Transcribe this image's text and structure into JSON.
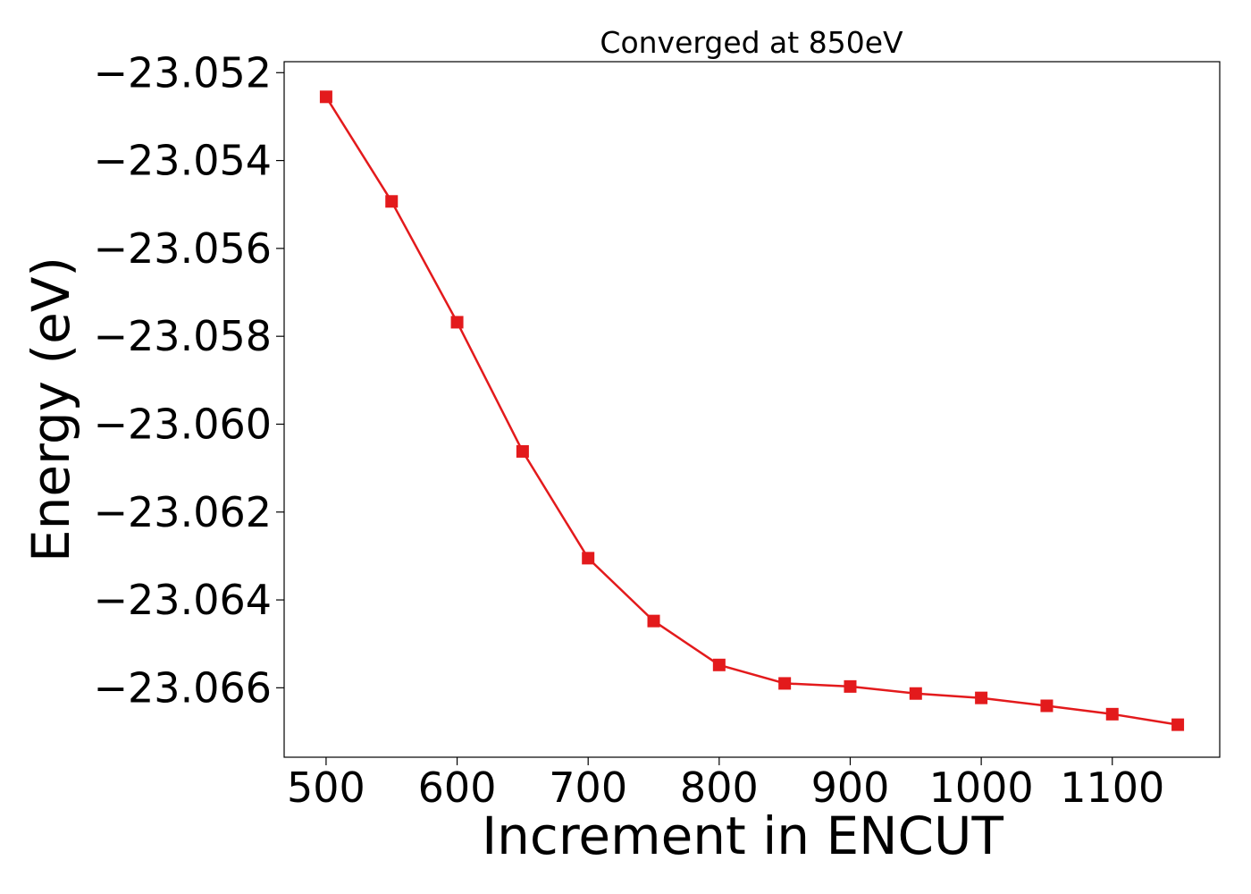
{
  "chart_data": {
    "type": "line",
    "title": "Converged at 850eV",
    "xlabel": "Increment in ENCUT",
    "ylabel": "Energy (eV)",
    "xlim": [
      468,
      1182
    ],
    "ylim": [
      -23.06758,
      -23.05175
    ],
    "x_ticks": [
      500,
      600,
      700,
      800,
      900,
      1000,
      1100
    ],
    "x_tick_labels": [
      "500",
      "600",
      "700",
      "800",
      "900",
      "1000",
      "1100"
    ],
    "y_ticks": [
      -23.052,
      -23.054,
      -23.056,
      -23.058,
      -23.06,
      -23.062,
      -23.064,
      -23.066
    ],
    "y_tick_labels": [
      "−23.052",
      "−23.054",
      "−23.056",
      "−23.058",
      "−23.060",
      "−23.062",
      "−23.064",
      "−23.066"
    ],
    "grid": false,
    "series": [
      {
        "color": "#e31a1c",
        "marker": "square",
        "x": [
          500,
          550,
          600,
          650,
          700,
          750,
          800,
          850,
          900,
          950,
          1000,
          1050,
          1100,
          1150
        ],
        "y": [
          -23.05255,
          -23.05493,
          -23.05768,
          -23.06062,
          -23.06305,
          -23.06448,
          -23.06548,
          -23.0659,
          -23.06597,
          -23.06613,
          -23.06623,
          -23.06641,
          -23.0666,
          -23.06684
        ]
      }
    ]
  }
}
